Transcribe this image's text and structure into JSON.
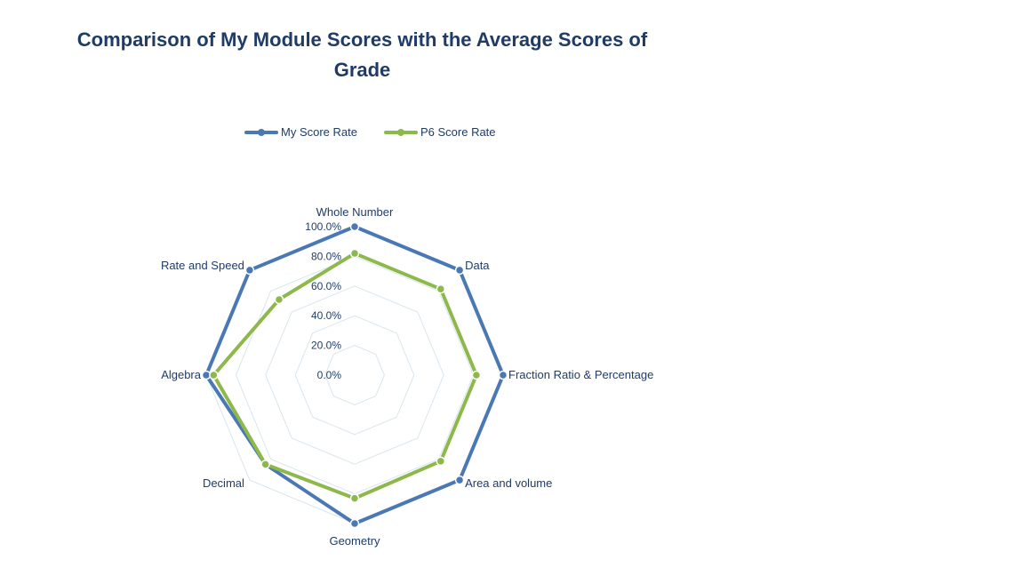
{
  "chart_data": {
    "type": "radar",
    "title": "Comparison of My Module Scores with the Average Scores of Grade",
    "categories": [
      "Whole Number",
      "Data",
      "Fraction Ratio & Percentage",
      "Area and volume",
      "Geometry",
      "Decimal",
      "Algebra",
      "Rate and Speed"
    ],
    "series": [
      {
        "name": "My Score Rate",
        "values": [
          1.0,
          1.0,
          1.0,
          1.0,
          1.0,
          0.85,
          1.0,
          1.0
        ],
        "color": "#4a78b5"
      },
      {
        "name": "P6 Score Rate",
        "values": [
          0.82,
          0.82,
          0.82,
          0.82,
          0.83,
          0.85,
          0.95,
          0.72
        ],
        "color": "#8db84a"
      }
    ],
    "radial_ticks": [
      "0.0%",
      "20.0%",
      "40.0%",
      "60.0%",
      "80.0%",
      "100.0%"
    ],
    "range": [
      0,
      1
    ],
    "legend_position": "top"
  }
}
